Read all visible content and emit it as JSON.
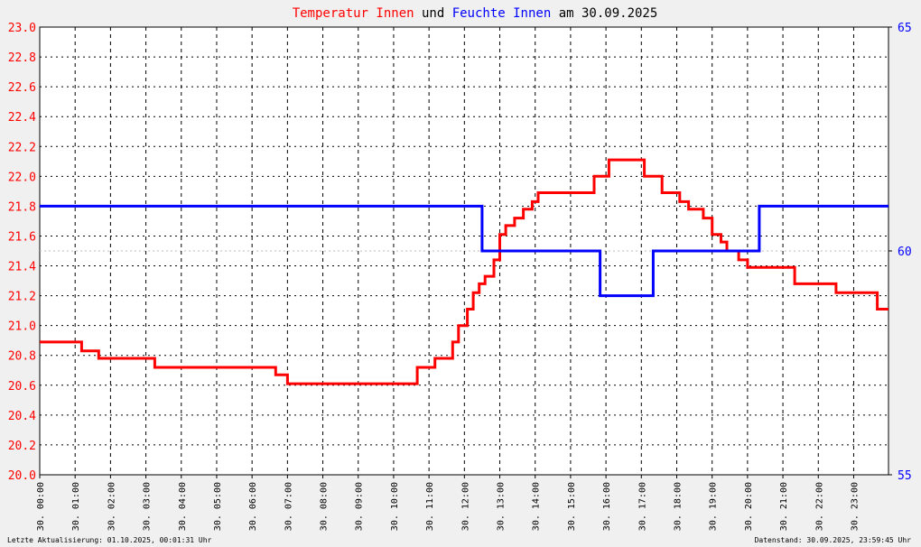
{
  "colors": {
    "temp": "#ff0000",
    "hum": "#0000ff",
    "text": "#000000",
    "grid": "#000000",
    "ref": "#bbbbbb"
  },
  "title": {
    "part1": "Temperatur Innen",
    "part2": " und ",
    "part3": "Feuchte Innen",
    "part4": " am 30.09.2025"
  },
  "footer": {
    "left": "Letzte Aktualisierung: 01.10.2025, 00:01:31 Uhr",
    "right": "Datenstand: 30.09.2025, 23:59:45 Uhr"
  },
  "chart_data": {
    "type": "line",
    "title": "Temperatur Innen und Feuchte Innen am 30.09.2025",
    "x_label": "",
    "grid": true,
    "x_ticks": [
      "30. 00:00",
      "30. 01:00",
      "30. 02:00",
      "30. 03:00",
      "30. 04:00",
      "30. 05:00",
      "30. 06:00",
      "30. 07:00",
      "30. 08:00",
      "30. 09:00",
      "30. 10:00",
      "30. 11:00",
      "30. 12:00",
      "30. 13:00",
      "30. 14:00",
      "30. 15:00",
      "30. 16:00",
      "30. 17:00",
      "30. 18:00",
      "30. 19:00",
      "30. 20:00",
      "30. 21:00",
      "30. 22:00",
      "30. 23:00"
    ],
    "x_range": [
      "00:00",
      "23:59"
    ],
    "y_left": {
      "range": [
        20.0,
        23.0
      ],
      "ticks": [
        "20.0",
        "20.2",
        "20.4",
        "20.6",
        "20.8",
        "21.0",
        "21.2",
        "21.4",
        "21.6",
        "21.8",
        "22.0",
        "22.2",
        "22.4",
        "22.6",
        "22.8",
        "23.0"
      ]
    },
    "y_right": {
      "range": [
        55,
        65
      ],
      "ticks": [
        "55",
        "60",
        "65"
      ]
    },
    "series": [
      {
        "name": "Temperatur Innen",
        "axis": "left",
        "color": "#ff0000",
        "points": [
          [
            "00:00",
            20.89
          ],
          [
            "01:10",
            20.89
          ],
          [
            "01:11",
            20.83
          ],
          [
            "01:40",
            20.78
          ],
          [
            "03:05",
            20.78
          ],
          [
            "03:15",
            20.72
          ],
          [
            "05:10",
            20.72
          ],
          [
            "06:40",
            20.67
          ],
          [
            "07:00",
            20.61
          ],
          [
            "10:25",
            20.61
          ],
          [
            "10:40",
            20.72
          ],
          [
            "11:05",
            20.72
          ],
          [
            "11:10",
            20.78
          ],
          [
            "11:35",
            20.78
          ],
          [
            "11:40",
            20.89
          ],
          [
            "11:50",
            21.0
          ],
          [
            "12:05",
            21.11
          ],
          [
            "12:15",
            21.22
          ],
          [
            "12:25",
            21.28
          ],
          [
            "12:35",
            21.33
          ],
          [
            "12:50",
            21.44
          ],
          [
            "13:00",
            21.61
          ],
          [
            "13:10",
            21.67
          ],
          [
            "13:25",
            21.72
          ],
          [
            "13:40",
            21.78
          ],
          [
            "13:55",
            21.83
          ],
          [
            "14:05",
            21.89
          ],
          [
            "15:30",
            21.89
          ],
          [
            "15:40",
            22.0
          ],
          [
            "16:05",
            22.11
          ],
          [
            "16:55",
            22.11
          ],
          [
            "17:05",
            22.0
          ],
          [
            "17:30",
            22.0
          ],
          [
            "17:35",
            21.89
          ],
          [
            "17:55",
            21.89
          ],
          [
            "18:05",
            21.83
          ],
          [
            "18:20",
            21.78
          ],
          [
            "18:45",
            21.72
          ],
          [
            "19:00",
            21.61
          ],
          [
            "19:15",
            21.56
          ],
          [
            "19:25",
            21.5
          ],
          [
            "19:45",
            21.44
          ],
          [
            "20:00",
            21.39
          ],
          [
            "21:05",
            21.39
          ],
          [
            "21:20",
            21.28
          ],
          [
            "22:20",
            21.28
          ],
          [
            "22:30",
            21.22
          ],
          [
            "23:35",
            21.22
          ],
          [
            "23:40",
            21.11
          ],
          [
            "23:59",
            21.11
          ]
        ]
      },
      {
        "name": "Feuchte Innen",
        "axis": "right",
        "color": "#0000ff",
        "points": [
          [
            "00:00",
            61
          ],
          [
            "12:25",
            61
          ],
          [
            "12:30",
            60
          ],
          [
            "15:45",
            60
          ],
          [
            "15:50",
            59
          ],
          [
            "17:15",
            59
          ],
          [
            "17:20",
            60
          ],
          [
            "20:15",
            60
          ],
          [
            "20:20",
            61
          ],
          [
            "23:59",
            61
          ]
        ]
      }
    ]
  }
}
